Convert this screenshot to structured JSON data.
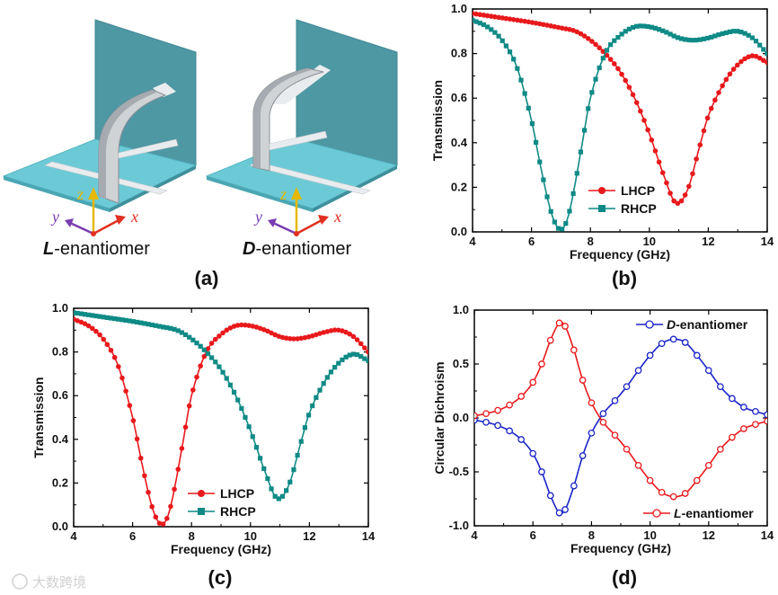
{
  "panel_a": {
    "left_label_prefix": "L",
    "right_label_prefix": "D",
    "label_suffix": "-enantiomer",
    "axis_x": "x",
    "axis_y": "y",
    "axis_z": "z",
    "colors": {
      "wall": "#4e98a4",
      "floor": "#6ccad6",
      "strip": "#e9ecee",
      "x_axis": "#e03020",
      "y_axis": "#7a3cb0",
      "z_axis": "#e6b800"
    }
  },
  "panel_labels": {
    "a": "(a)",
    "b": "(b)",
    "c": "(c)",
    "d": "(d)"
  },
  "watermark": "大数跨境",
  "chart_data": [
    {
      "id": "b",
      "type": "line",
      "xlabel": "Frequency (GHz)",
      "ylabel": "Transmission",
      "xlim": [
        4,
        14
      ],
      "ylim": [
        0,
        1
      ],
      "xticks": [
        "4",
        "6",
        "8",
        "10",
        "12",
        "14"
      ],
      "yticks": [
        "0.0",
        "0.2",
        "0.4",
        "0.6",
        "0.8",
        "1.0"
      ],
      "legend_position": "center-bottom",
      "series": [
        {
          "name": "LHCP",
          "color": "#e8191c",
          "marker": "circle",
          "x": [
            4,
            5,
            6,
            7,
            7.5,
            8,
            8.5,
            9,
            9.5,
            10,
            10.5,
            10.9,
            11.3,
            11.7,
            12,
            12.5,
            13,
            13.5,
            14
          ],
          "y": [
            0.98,
            0.96,
            0.94,
            0.915,
            0.9,
            0.86,
            0.8,
            0.72,
            0.6,
            0.44,
            0.25,
            0.13,
            0.19,
            0.38,
            0.52,
            0.66,
            0.75,
            0.79,
            0.76
          ]
        },
        {
          "name": "RHCP",
          "color": "#0f8a86",
          "marker": "square",
          "x": [
            4,
            4.5,
            5,
            5.5,
            6,
            6.3,
            6.6,
            6.8,
            7,
            7.2,
            7.4,
            7.7,
            8,
            8.5,
            9,
            9.5,
            10,
            10.5,
            11,
            11.5,
            12,
            12.5,
            13,
            13.5,
            14
          ],
          "y": [
            0.95,
            0.92,
            0.86,
            0.74,
            0.5,
            0.3,
            0.12,
            0.04,
            0.01,
            0.05,
            0.16,
            0.38,
            0.6,
            0.8,
            0.88,
            0.92,
            0.92,
            0.9,
            0.87,
            0.86,
            0.87,
            0.89,
            0.9,
            0.87,
            0.8
          ]
        }
      ]
    },
    {
      "id": "c",
      "type": "line",
      "xlabel": "Frequency (GHz)",
      "ylabel": "Transmission",
      "xlim": [
        4,
        14
      ],
      "ylim": [
        0,
        1
      ],
      "xticks": [
        "4",
        "6",
        "8",
        "10",
        "12",
        "14"
      ],
      "yticks": [
        "0.0",
        "0.2",
        "0.4",
        "0.6",
        "0.8",
        "1.0"
      ],
      "legend_position": "center-bottom",
      "series": [
        {
          "name": "LHCP",
          "color": "#e8191c",
          "marker": "circle",
          "x": [
            4,
            4.5,
            5,
            5.5,
            6,
            6.3,
            6.6,
            6.8,
            7,
            7.2,
            7.4,
            7.7,
            8,
            8.5,
            9,
            9.5,
            10,
            10.5,
            11,
            11.5,
            12,
            12.5,
            13,
            13.5,
            14
          ],
          "y": [
            0.95,
            0.92,
            0.86,
            0.74,
            0.5,
            0.3,
            0.12,
            0.04,
            0.01,
            0.05,
            0.16,
            0.38,
            0.6,
            0.8,
            0.88,
            0.92,
            0.92,
            0.9,
            0.87,
            0.86,
            0.87,
            0.89,
            0.9,
            0.87,
            0.8
          ]
        },
        {
          "name": "RHCP",
          "color": "#0f8a86",
          "marker": "square",
          "x": [
            4,
            5,
            6,
            7,
            7.5,
            8,
            8.5,
            9,
            9.5,
            10,
            10.5,
            10.9,
            11.3,
            11.7,
            12,
            12.5,
            13,
            13.5,
            14
          ],
          "y": [
            0.98,
            0.96,
            0.94,
            0.915,
            0.9,
            0.86,
            0.8,
            0.72,
            0.6,
            0.44,
            0.25,
            0.13,
            0.19,
            0.38,
            0.52,
            0.66,
            0.75,
            0.79,
            0.76
          ]
        }
      ]
    },
    {
      "id": "d",
      "type": "line",
      "xlabel": "Frequency (GHz)",
      "ylabel": "Circular Dichroism",
      "xlim": [
        4,
        14
      ],
      "ylim": [
        -1,
        1
      ],
      "xticks": [
        "4",
        "6",
        "8",
        "10",
        "12",
        "14"
      ],
      "yticks": [
        "-1.0",
        "-0.5",
        "0.0",
        "0.5",
        "1.0"
      ],
      "series": [
        {
          "name": "D-enantiomer",
          "name_italic": "D",
          "name_rest": "-enantiomer",
          "color": "#1a23c8",
          "marker": "open-circle",
          "legend_position": "top-right",
          "x": [
            4,
            4.4,
            4.8,
            5.2,
            5.6,
            6,
            6.3,
            6.6,
            6.9,
            7.1,
            7.4,
            7.7,
            8,
            8.4,
            8.8,
            9.2,
            9.6,
            10,
            10.4,
            10.8,
            11.2,
            11.6,
            12,
            12.4,
            12.8,
            13.2,
            13.6,
            14
          ],
          "y": [
            -0.02,
            -0.04,
            -0.07,
            -0.12,
            -0.2,
            -0.33,
            -0.5,
            -0.72,
            -0.88,
            -0.85,
            -0.63,
            -0.35,
            -0.14,
            0.04,
            0.16,
            0.29,
            0.44,
            0.58,
            0.69,
            0.73,
            0.7,
            0.58,
            0.44,
            0.29,
            0.18,
            0.1,
            0.06,
            0.03
          ]
        },
        {
          "name": "L-enantiomer",
          "name_italic": "L",
          "name_rest": "-enantiomer",
          "color": "#e8191c",
          "marker": "open-circle",
          "legend_position": "bottom-right",
          "x": [
            4,
            4.4,
            4.8,
            5.2,
            5.6,
            6,
            6.3,
            6.6,
            6.9,
            7.1,
            7.4,
            7.7,
            8,
            8.4,
            8.8,
            9.2,
            9.6,
            10,
            10.4,
            10.8,
            11.2,
            11.6,
            12,
            12.4,
            12.8,
            13.2,
            13.6,
            14
          ],
          "y": [
            0.02,
            0.04,
            0.07,
            0.12,
            0.2,
            0.33,
            0.5,
            0.72,
            0.88,
            0.85,
            0.63,
            0.35,
            0.14,
            -0.04,
            -0.16,
            -0.29,
            -0.44,
            -0.58,
            -0.69,
            -0.73,
            -0.7,
            -0.58,
            -0.44,
            -0.29,
            -0.18,
            -0.1,
            -0.06,
            -0.03
          ]
        }
      ]
    }
  ]
}
